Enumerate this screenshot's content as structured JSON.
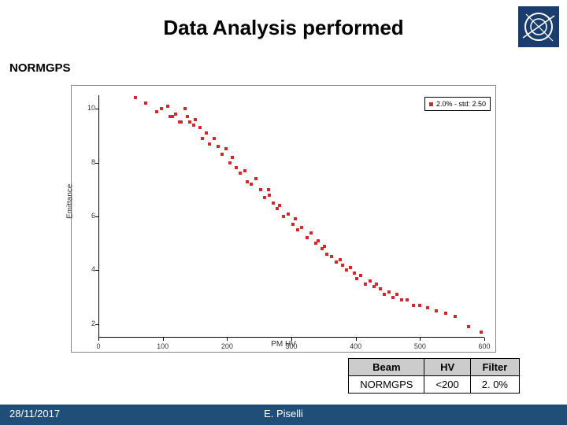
{
  "title": "Data Analysis performed",
  "subtitle": "NORMGPS",
  "logo": {
    "bg": "#1b3d6d",
    "ring": "#ffffff"
  },
  "chart": {
    "type": "scatter",
    "xlabel": "PM HV",
    "ylabel": "Emittance",
    "xlim": [
      0,
      600
    ],
    "ylim": [
      1.5,
      10.5
    ],
    "xticks": [
      0,
      100,
      200,
      300,
      400,
      500,
      600
    ],
    "xtick_labels": [
      "0",
      "100",
      "200",
      "300",
      "400",
      "500",
      "600"
    ],
    "yticks": [
      2,
      4,
      6,
      8,
      10
    ],
    "ytick_labels": [
      "2",
      "4",
      "6",
      "8",
      "10"
    ],
    "marker_color": "#d62728",
    "marker_size": 4,
    "background": "#ffffff",
    "axis_color": "#000000",
    "legend": {
      "label": "2.0% - std: 2.50",
      "marker_color": "#d62728"
    },
    "points": [
      [
        58,
        10.4
      ],
      [
        74,
        10.2
      ],
      [
        90,
        9.9
      ],
      [
        98,
        10.0
      ],
      [
        108,
        10.1
      ],
      [
        112,
        9.7
      ],
      [
        115,
        9.7
      ],
      [
        120,
        9.8
      ],
      [
        126,
        9.5
      ],
      [
        129,
        9.5
      ],
      [
        135,
        10.0
      ],
      [
        138,
        9.7
      ],
      [
        142,
        9.5
      ],
      [
        148,
        9.4
      ],
      [
        151,
        9.6
      ],
      [
        158,
        9.3
      ],
      [
        162,
        8.9
      ],
      [
        168,
        9.1
      ],
      [
        173,
        8.7
      ],
      [
        180,
        8.9
      ],
      [
        186,
        8.6
      ],
      [
        192,
        8.3
      ],
      [
        198,
        8.5
      ],
      [
        204,
        8.0
      ],
      [
        208,
        8.2
      ],
      [
        214,
        7.8
      ],
      [
        221,
        7.6
      ],
      [
        228,
        7.7
      ],
      [
        232,
        7.3
      ],
      [
        238,
        7.2
      ],
      [
        245,
        7.4
      ],
      [
        252,
        7.0
      ],
      [
        258,
        6.7
      ],
      [
        264,
        7.0
      ],
      [
        266,
        6.8
      ],
      [
        272,
        6.5
      ],
      [
        278,
        6.3
      ],
      [
        282,
        6.4
      ],
      [
        288,
        6.0
      ],
      [
        295,
        6.1
      ],
      [
        302,
        5.7
      ],
      [
        306,
        5.9
      ],
      [
        310,
        5.5
      ],
      [
        316,
        5.6
      ],
      [
        324,
        5.2
      ],
      [
        330,
        5.4
      ],
      [
        338,
        5.0
      ],
      [
        342,
        5.1
      ],
      [
        348,
        4.8
      ],
      [
        352,
        4.9
      ],
      [
        355,
        4.6
      ],
      [
        362,
        4.5
      ],
      [
        370,
        4.3
      ],
      [
        376,
        4.4
      ],
      [
        380,
        4.2
      ],
      [
        386,
        4.0
      ],
      [
        392,
        4.1
      ],
      [
        398,
        3.9
      ],
      [
        402,
        3.7
      ],
      [
        408,
        3.8
      ],
      [
        415,
        3.5
      ],
      [
        422,
        3.6
      ],
      [
        428,
        3.4
      ],
      [
        432,
        3.5
      ],
      [
        438,
        3.3
      ],
      [
        445,
        3.1
      ],
      [
        452,
        3.2
      ],
      [
        458,
        3.0
      ],
      [
        464,
        3.1
      ],
      [
        472,
        2.9
      ],
      [
        480,
        2.9
      ],
      [
        490,
        2.7
      ],
      [
        500,
        2.7
      ],
      [
        512,
        2.6
      ],
      [
        525,
        2.5
      ],
      [
        540,
        2.4
      ],
      [
        555,
        2.3
      ],
      [
        575,
        1.9
      ],
      [
        595,
        1.7
      ]
    ]
  },
  "table": {
    "headers": [
      "Beam",
      "HV",
      "Filter"
    ],
    "row": [
      "NORMGPS",
      "<200",
      "2. 0%"
    ],
    "header_bg": "#cccccc",
    "border": "#000000"
  },
  "footer": {
    "date": "28/11/2017",
    "author": "E. Piselli",
    "bg": "#1f4e79",
    "text_color": "#ffffff"
  }
}
